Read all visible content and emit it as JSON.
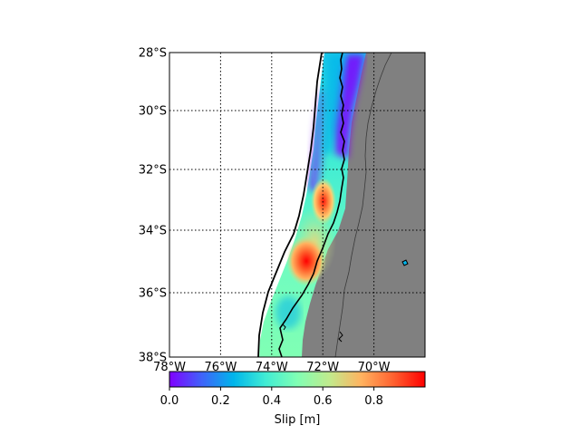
{
  "map": {
    "lat_ticks": [
      "28°S",
      "30°S",
      "32°S",
      "34°S",
      "36°S",
      "38°S"
    ],
    "lon_ticks": [
      "78°W",
      "76°W",
      "74°W",
      "72°W",
      "70°W"
    ],
    "extent": {
      "lon_min": -78,
      "lon_max": -68,
      "lat_min": -38,
      "lat_max": -28
    },
    "grid": "dotted",
    "land_color": "#808080",
    "ocean_color": "#ffffff",
    "field": "slip"
  },
  "colorbar": {
    "label": "Slip [m]",
    "ticks": [
      "0.0",
      "0.2",
      "0.4",
      "0.6",
      "0.8"
    ],
    "range": [
      0,
      1
    ],
    "colormap": "rainbow",
    "colors": [
      "#8000ff",
      "#00b5eb",
      "#80ffb4",
      "#ffb360",
      "#ff0000"
    ]
  }
}
